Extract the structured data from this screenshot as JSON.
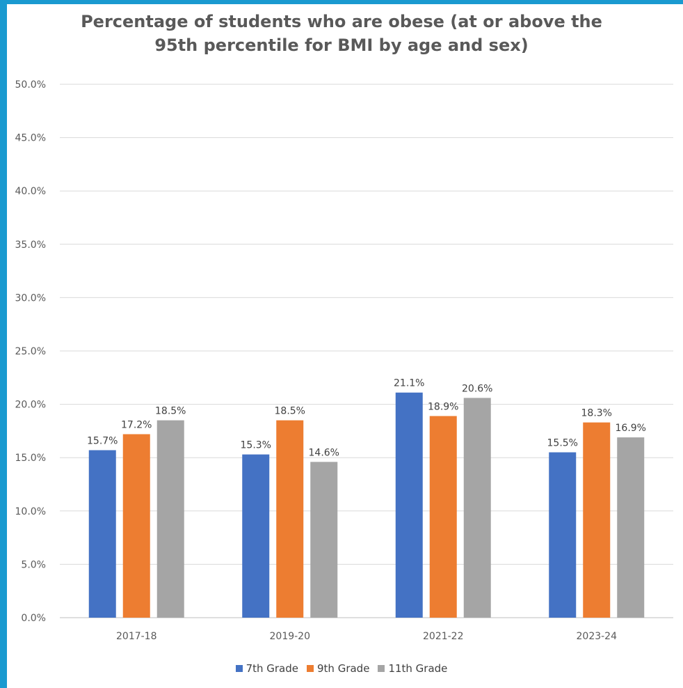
{
  "chart_data": {
    "type": "bar",
    "title": "Percentage of students who are obese (at or above the 95th percentile for BMI by age and sex)",
    "title_lines": [
      "Percentage of students who are obese (at or above the",
      "95th percentile for BMI by age and sex)"
    ],
    "categories": [
      "2017-18",
      "2019-20",
      "2021-22",
      "2023-24"
    ],
    "series": [
      {
        "name": "7th Grade",
        "color": "#4472c4",
        "values": [
          15.7,
          15.3,
          21.1,
          15.5
        ],
        "labels": [
          "15.7%",
          "15.3%",
          "21.1%",
          "15.5%"
        ]
      },
      {
        "name": "9th Grade",
        "color": "#ed7d31",
        "values": [
          17.2,
          18.5,
          18.9,
          18.3
        ],
        "labels": [
          "17.2%",
          "18.5%",
          "18.9%",
          "18.3%"
        ]
      },
      {
        "name": "11th Grade",
        "color": "#a5a5a5",
        "values": [
          18.5,
          14.6,
          20.6,
          16.9
        ],
        "labels": [
          "18.5%",
          "14.6%",
          "20.6%",
          "16.9%"
        ]
      }
    ],
    "ylim": [
      0,
      50
    ],
    "yticks": [
      0,
      5,
      10,
      15,
      20,
      25,
      30,
      35,
      40,
      45,
      50
    ],
    "ytick_labels": [
      "0.0%",
      "5.0%",
      "10.0%",
      "15.0%",
      "20.0%",
      "25.0%",
      "30.0%",
      "35.0%",
      "40.0%",
      "45.0%",
      "50.0%"
    ],
    "xlabel": "",
    "ylabel": "",
    "grid": true,
    "legend_position": "bottom"
  },
  "colors": {
    "border": "#1a9ad0",
    "grid": "#d9d9d9",
    "text": "#595959"
  }
}
